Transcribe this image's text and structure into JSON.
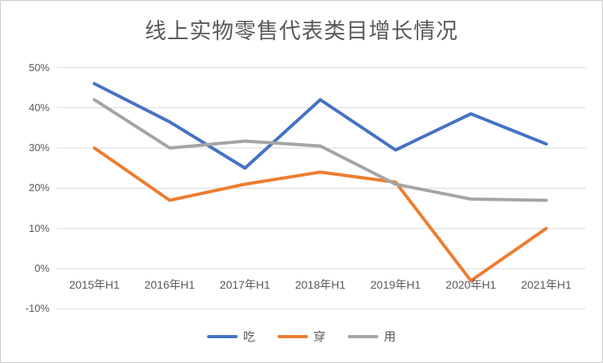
{
  "chart_data": {
    "type": "line",
    "title": "线上实物零售代表类目增长情况",
    "categories": [
      "2015年H1",
      "2016年H1",
      "2017年H1",
      "2018年H1",
      "2019年H1",
      "2020年H1",
      "2021年H1"
    ],
    "series": [
      {
        "name": "吃",
        "color": "#4472C4",
        "values": [
          46,
          36.5,
          25,
          42,
          29.5,
          38.5,
          31
        ]
      },
      {
        "name": "穿",
        "color": "#ED7D31",
        "values": [
          30,
          17,
          21,
          24,
          21.5,
          -3,
          10
        ]
      },
      {
        "name": "用",
        "color": "#A5A5A5",
        "values": [
          42,
          30,
          31.7,
          30.5,
          21,
          17.3,
          17
        ]
      }
    ],
    "y_ticks": [
      {
        "value": 50,
        "label": "50%"
      },
      {
        "value": 40,
        "label": "40%"
      },
      {
        "value": 30,
        "label": "30%"
      },
      {
        "value": 20,
        "label": "20%"
      },
      {
        "value": 10,
        "label": "10%"
      },
      {
        "value": 0,
        "label": "0%"
      },
      {
        "value": -10,
        "label": "-10%"
      }
    ],
    "ylim": [
      -10,
      50
    ],
    "grid": true,
    "legend_position": "bottom",
    "gridline_color": "#D9D9D9",
    "tick_label_color": "#595959",
    "title_color": "#595959"
  }
}
